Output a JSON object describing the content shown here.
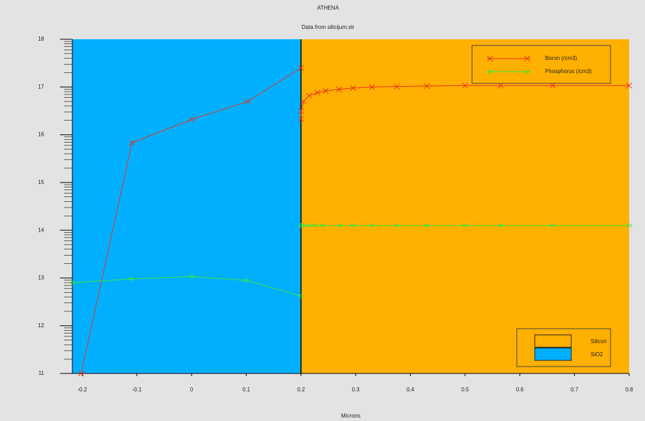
{
  "chart_data": {
    "type": "line",
    "title": "ATHENA",
    "subtitle": "Data from silicijum.str",
    "x_label": "Microns",
    "xlim": [
      -0.218,
      0.8
    ],
    "ylim": [
      11,
      18
    ],
    "xticks": [
      -0.2,
      -0.1,
      0,
      0.1,
      0.2,
      0.3,
      0.4,
      0.5,
      0.6,
      0.7,
      0.8
    ],
    "yticks": [
      11,
      12,
      13,
      14,
      15,
      16,
      17,
      18
    ],
    "log_minor_ticks": true,
    "regions": [
      {
        "name": "Silicon",
        "color": "#ffb000",
        "xrange": [
          0.2,
          0.8
        ]
      },
      {
        "name": "SiO2",
        "color": "#00b0ff",
        "xrange": [
          -0.218,
          0.2
        ]
      }
    ],
    "series": [
      {
        "name": "Boron (/cm3)",
        "color": "#e8321e",
        "marker": "x",
        "x": [
          -0.202,
          -0.109,
          0,
          0.103,
          0.2,
          null,
          0.2,
          0.2,
          0.205,
          0.215,
          0.23,
          0.245,
          0.27,
          0.295,
          0.33,
          0.375,
          0.43,
          0.5,
          0.565,
          0.66,
          0.8
        ],
        "values": [
          11.0,
          15.83,
          16.32,
          16.7,
          17.4,
          null,
          16.33,
          16.5,
          16.7,
          16.82,
          16.88,
          16.92,
          16.95,
          16.98,
          17.0,
          17.01,
          17.02,
          17.03,
          17.03,
          17.03,
          17.03
        ]
      },
      {
        "name": "Phosphorus (/cm3)",
        "color": "#3ce63c",
        "marker": "diamond",
        "x": [
          -0.218,
          -0.11,
          0,
          0.1,
          0.2,
          null,
          0.2,
          0.205,
          0.215,
          0.225,
          0.24,
          0.27,
          0.295,
          0.33,
          0.375,
          0.43,
          0.5,
          0.565,
          0.66,
          0.8
        ],
        "values": [
          12.9,
          12.98,
          13.03,
          12.95,
          12.62,
          null,
          14.1,
          14.1,
          14.1,
          14.1,
          14.1,
          14.1,
          14.1,
          14.1,
          14.1,
          14.1,
          14.1,
          14.1,
          14.1,
          14.1
        ]
      }
    ]
  }
}
